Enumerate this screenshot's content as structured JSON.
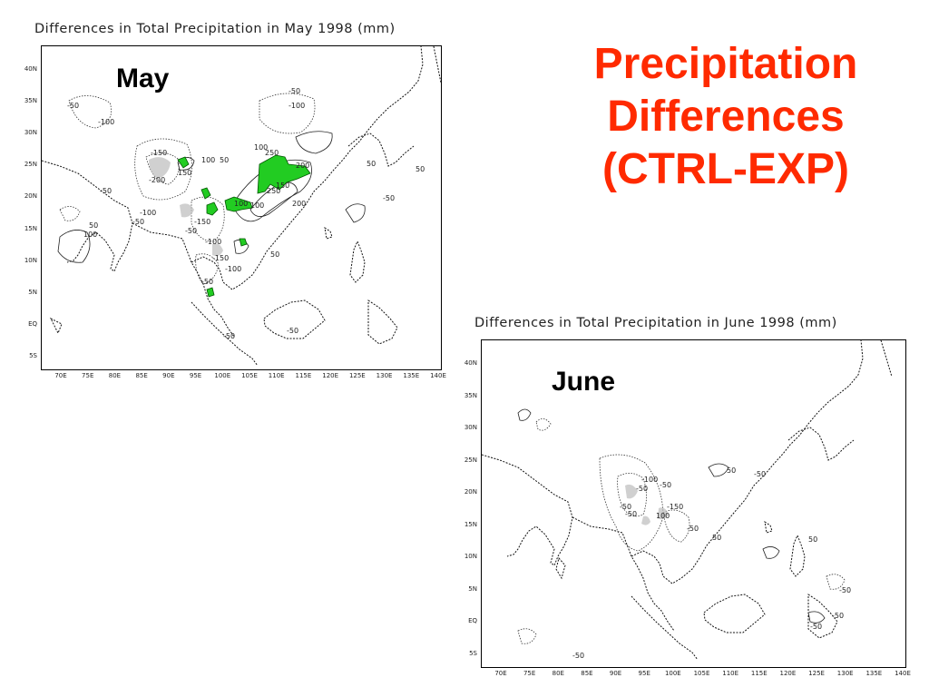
{
  "slide": {
    "heading": [
      "Precipitation",
      "Differences",
      "(CTRL-EXP)"
    ],
    "accent_color": "#ff2a00"
  },
  "maps": {
    "may": {
      "title": "Differences in Total Precipitation in May 1998 (mm)",
      "month_label": "May",
      "lat_ticks": [
        "40N",
        "35N",
        "30N",
        "25N",
        "20N",
        "15N",
        "10N",
        "5N",
        "EQ",
        "5S"
      ],
      "lon_ticks": [
        "70E",
        "75E",
        "80E",
        "85E",
        "90E",
        "95E",
        "100E",
        "105E",
        "110E",
        "115E",
        "120E",
        "125E",
        "130E",
        "135E",
        "140E"
      ],
      "contour_labels": [
        "-50",
        "-100",
        "-50",
        "-100",
        "-150",
        "-200",
        "150",
        "100",
        "50",
        "250",
        "100",
        "200",
        "150",
        "100",
        "-150",
        "-50",
        "-100",
        "-50",
        "50",
        "100",
        "-50",
        "50",
        "50",
        "-50",
        "-100",
        "-150",
        "250",
        "200",
        "100",
        "50",
        "-100",
        "-50",
        "-50",
        "-50"
      ],
      "shade_color": "#22cc22"
    },
    "june": {
      "title": "Differences in Total Precipitation in June 1998 (mm)",
      "month_label": "June",
      "lat_ticks": [
        "40N",
        "35N",
        "30N",
        "25N",
        "20N",
        "15N",
        "10N",
        "5N",
        "EQ",
        "5S"
      ],
      "lon_ticks": [
        "70E",
        "75E",
        "80E",
        "85E",
        "90E",
        "95E",
        "100E",
        "105E",
        "110E",
        "115E",
        "120E",
        "125E",
        "130E",
        "135E",
        "140E"
      ],
      "contour_labels": [
        "-50",
        "-100",
        "-50",
        "-150",
        "-50",
        "100",
        "-50",
        "50",
        "-50",
        "50",
        "-50",
        "50",
        "-50",
        "-50",
        "-50",
        "-50"
      ]
    }
  }
}
